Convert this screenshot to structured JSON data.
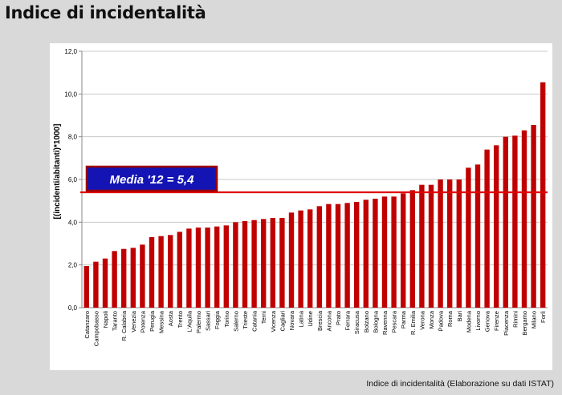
{
  "slide": {
    "title": "Indice di incidentalità",
    "caption": "Indice di incidentalità (Elaborazione su dati ISTAT)"
  },
  "chart_data": {
    "type": "bar",
    "ylabel": "[(incidenti/abitanti)*1000]",
    "ylim": [
      0,
      12
    ],
    "yticks": [
      "0,0",
      "2,0",
      "4,0",
      "6,0",
      "8,0",
      "10,0",
      "12,0"
    ],
    "grid": true,
    "bar_color": "#c00000",
    "categories": [
      "Catanzaro",
      "Campobasso",
      "Napoli",
      "Taranto",
      "R. Calabria",
      "Venezia",
      "Potenza",
      "Perugia",
      "Messina",
      "Aosta",
      "Trento",
      "L'Aquila",
      "Palermo",
      "Sassari",
      "Foggia",
      "Torino",
      "Salerno",
      "Trieste",
      "Catania",
      "Terni",
      "Vicenza",
      "Cagliari",
      "Novara",
      "Latina",
      "Udine",
      "Brescia",
      "Ancona",
      "Prato",
      "Ferrara",
      "Siracusa",
      "Bolzano",
      "Bologna",
      "Ravenna",
      "Pescara",
      "Parma",
      "R. Emilia",
      "Verona",
      "Monza",
      "Padova",
      "Roma",
      "Bari",
      "Modena",
      "Livorno",
      "Genova",
      "Firenze",
      "Piacenza",
      "Rimini",
      "Bergamo",
      "Milano",
      "Forlì"
    ],
    "values": [
      1.95,
      2.15,
      2.3,
      2.65,
      2.75,
      2.8,
      2.95,
      3.3,
      3.35,
      3.4,
      3.55,
      3.7,
      3.75,
      3.75,
      3.8,
      3.85,
      4.0,
      4.05,
      4.1,
      4.15,
      4.2,
      4.2,
      4.45,
      4.55,
      4.6,
      4.75,
      4.85,
      4.85,
      4.9,
      4.95,
      5.05,
      5.1,
      5.2,
      5.2,
      5.35,
      5.5,
      5.75,
      5.75,
      6.0,
      6.0,
      6.0,
      6.55,
      6.7,
      7.4,
      7.6,
      8.0,
      8.05,
      8.3,
      8.55,
      10.55
    ],
    "reference_line": {
      "value": 5.4,
      "label": "Media '12 = 5,4",
      "color": "#e00000"
    }
  }
}
